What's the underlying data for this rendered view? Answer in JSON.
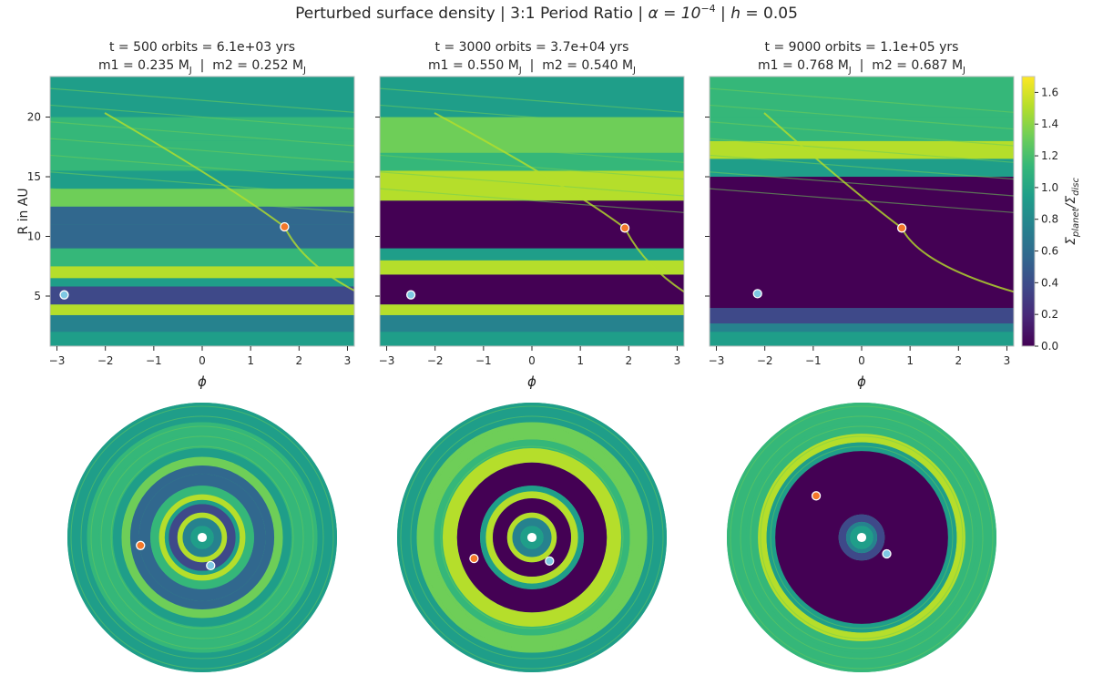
{
  "figure": {
    "title_parts": [
      "Perturbed surface density | 3:1 Period Ratio | ",
      "α = 10",
      "−4",
      " | ",
      "h",
      " = 0.05"
    ]
  },
  "colormap": [
    "#440154",
    "#482878",
    "#3e4989",
    "#31688e",
    "#26828e",
    "#1f9e89",
    "#35b779",
    "#6ece58",
    "#b5de2b",
    "#fde725"
  ],
  "colorbar": {
    "label_parts": [
      "Σ",
      "planet",
      "/Σ",
      "disc"
    ],
    "ticks": [
      0.0,
      0.2,
      0.4,
      0.6,
      0.8,
      1.0,
      1.2,
      1.4,
      1.6
    ],
    "tick_labels": [
      "0.0",
      "0.2",
      "0.4",
      "0.6",
      "0.8",
      "1.0",
      "1.2",
      "1.4",
      "1.6"
    ],
    "range": [
      0,
      1.7
    ]
  },
  "chart_data": [
    {
      "type": "heatmap",
      "title_line1": "t = 500 orbits = 6.1e+03 yrs",
      "title_line2_parts": [
        "m1 = 0.235 M",
        "J",
        "  |  m2 = 0.252 M",
        "J"
      ],
      "xlabel": "ϕ",
      "ylabel": "R in AU",
      "xlim": [
        -3.14159,
        3.14159
      ],
      "ylim": [
        0.8,
        23.4
      ],
      "xticks": [
        -3,
        -2,
        -1,
        0,
        1,
        2,
        3
      ],
      "xtick_labels": [
        "−3",
        "−2",
        "−1",
        "0",
        "1",
        "2",
        "3"
      ],
      "yticks": [
        5,
        10,
        15,
        20
      ],
      "ytick_labels": [
        "5",
        "10",
        "15",
        "20"
      ],
      "planets": [
        {
          "phi": -2.85,
          "r": 5.1,
          "color": "#7ec8e3"
        },
        {
          "phi": 1.7,
          "r": 10.8,
          "color": "#f4782a"
        }
      ]
    },
    {
      "type": "heatmap",
      "title_line1": "t = 3000 orbits = 3.7e+04 yrs",
      "title_line2_parts": [
        "m1 = 0.550 M",
        "J",
        "  |  m2 = 0.540 M",
        "J"
      ],
      "xlabel": "ϕ",
      "xlim": [
        -3.14159,
        3.14159
      ],
      "ylim": [
        0.8,
        23.4
      ],
      "xticks": [
        -3,
        -2,
        -1,
        0,
        1,
        2,
        3
      ],
      "xtick_labels": [
        "−3",
        "−2",
        "−1",
        "0",
        "1",
        "2",
        "3"
      ],
      "yticks": [
        5,
        10,
        15,
        20
      ],
      "planets": [
        {
          "phi": -2.5,
          "r": 5.1,
          "color": "#7ec8e3"
        },
        {
          "phi": 1.92,
          "r": 10.7,
          "color": "#f4782a"
        }
      ]
    },
    {
      "type": "heatmap",
      "title_line1": "t = 9000 orbits = 1.1e+05 yrs",
      "title_line2_parts": [
        "m1 = 0.768 M",
        "J",
        "  |  m2 = 0.687 M",
        "J"
      ],
      "xlabel": "ϕ",
      "xlim": [
        -3.14159,
        3.14159
      ],
      "ylim": [
        0.8,
        23.4
      ],
      "xticks": [
        -3,
        -2,
        -1,
        0,
        1,
        2,
        3
      ],
      "xtick_labels": [
        "−3",
        "−2",
        "−1",
        "0",
        "1",
        "2",
        "3"
      ],
      "yticks": [
        5,
        10,
        15,
        20
      ],
      "planets": [
        {
          "phi": -2.15,
          "r": 5.2,
          "color": "#7ec8e3"
        },
        {
          "phi": 0.83,
          "r": 10.7,
          "color": "#f4782a"
        }
      ]
    }
  ]
}
